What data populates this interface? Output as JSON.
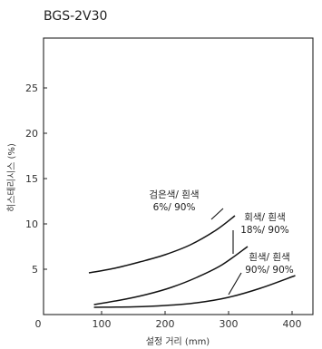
{
  "chart_data": {
    "type": "line",
    "title": "BGS-2V30",
    "xlabel": "설정 거리 (mm)",
    "ylabel": "히스테리시스 (%)",
    "xlim": [
      0,
      420
    ],
    "ylim": [
      0,
      30
    ],
    "xticks": [
      0,
      100,
      200,
      300,
      400
    ],
    "yticks": [
      5,
      10,
      15,
      20,
      25
    ],
    "grid": false,
    "series": [
      {
        "name": "검은색/ 흰색 6%/ 90%",
        "label_lines": [
          "검은색/ 흰색",
          "6%/ 90%"
        ],
        "x": [
          80,
          120,
          160,
          200,
          240,
          280,
          310
        ],
        "y": [
          4.6,
          5.1,
          5.8,
          6.6,
          7.7,
          9.3,
          10.9
        ]
      },
      {
        "name": "회색/ 흰색 18%/ 90%",
        "label_lines": [
          "회색/ 흰색",
          "18%/ 90%"
        ],
        "x": [
          88,
          130,
          170,
          210,
          250,
          290,
          330
        ],
        "y": [
          1.1,
          1.6,
          2.2,
          3.0,
          4.1,
          5.5,
          7.5
        ]
      },
      {
        "name": "흰색/ 흰색 90%/ 90%",
        "label_lines": [
          "흰색/ 흰색",
          "90%/ 90%"
        ],
        "x": [
          88,
          150,
          200,
          250,
          300,
          350,
          405
        ],
        "y": [
          0.8,
          0.85,
          1.0,
          1.3,
          1.9,
          2.9,
          4.3
        ]
      }
    ]
  }
}
